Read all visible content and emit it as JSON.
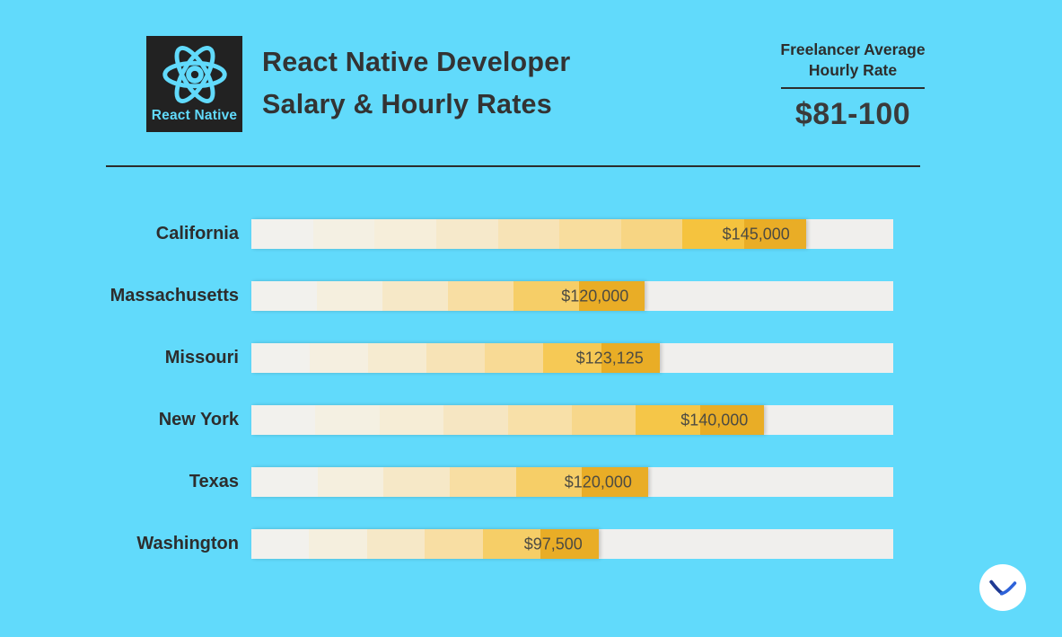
{
  "header": {
    "logo": {
      "brand": "React Native",
      "icon": "react-atom-icon",
      "background": "#222222",
      "accent": "#61dafb"
    },
    "title_line1": "React Native Developer",
    "title_line2": "Salary & Hourly Rates",
    "rate_box": {
      "label_line1": "Freelancer Average",
      "label_line2": "Hourly Rate",
      "value": "$81-100"
    }
  },
  "chart_data": {
    "type": "bar",
    "orientation": "horizontal",
    "title": "React Native Developer Salary & Hourly Rates",
    "categories": [
      "California",
      "Massachusetts",
      "Missouri",
      "New York",
      "Texas",
      "Washington"
    ],
    "values": [
      145000,
      120000,
      123125,
      140000,
      120000,
      97500
    ],
    "value_labels": [
      "$145,000",
      "$120,000",
      "$123,125",
      "$140,000",
      "$120,000",
      "$97,500"
    ],
    "fill_pct": [
      86.4,
      61.3,
      63.6,
      79.9,
      61.8,
      54.1
    ],
    "grid": false,
    "legend": "none",
    "colors": {
      "background": "#61dafb",
      "track": "#f0efed",
      "category_label": "#2d2d2d",
      "value_label": "#4d4b42",
      "segment_ramp": [
        "#f2f1ed",
        "#f4f0e3",
        "#f6eeda",
        "#f6e9cb",
        "#f7e3b6",
        "#f8dd9e",
        "#f7d583",
        "#f5c33e",
        "#e9ad26"
      ]
    }
  },
  "footer": {
    "watermark_icon": "seagull-logo",
    "watermark_colors": {
      "left_wing": "#1f3a93",
      "right_wing": "#2d62d9"
    }
  }
}
